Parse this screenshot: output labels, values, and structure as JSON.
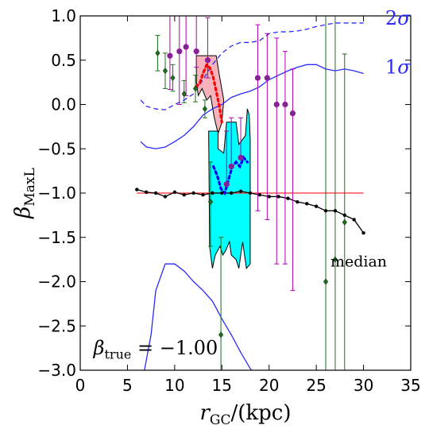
{
  "chart_data": {
    "type": "scatter",
    "xlabel": "r_GC/(kpc)",
    "ylabel": "β_MaxL",
    "xlim": [
      0,
      35
    ],
    "ylim": [
      -3.0,
      1.0
    ],
    "x_ticks": [
      0,
      5,
      10,
      15,
      20,
      25,
      30,
      35
    ],
    "x_tick_labels": [
      "0",
      "5",
      "10",
      "15",
      "20",
      "25",
      "30",
      "35"
    ],
    "y_ticks": [
      1.0,
      0.5,
      0.0,
      -0.5,
      -1.0,
      -1.5,
      -2.0,
      -2.5,
      -3.0
    ],
    "y_tick_labels": [
      "1.0",
      "0.5",
      "0.0",
      "−0.5",
      "−1.0",
      "−1.5",
      "−2.0",
      "−2.5",
      "−3.0"
    ],
    "grid": false,
    "annotations": [
      {
        "id": "label-2sigma",
        "text": "2σ",
        "x": 32.3,
        "y": 0.9,
        "color": "#2a2aff"
      },
      {
        "id": "label-1sigma",
        "text": "1σ",
        "x": 32.3,
        "y": 0.35,
        "color": "#2a2aff"
      },
      {
        "id": "label-median",
        "text": "median",
        "x": 26.5,
        "y": -1.83,
        "color": "#000000"
      },
      {
        "id": "label-beta-true",
        "text": "β_true = −1.00",
        "x": 1.4,
        "y": -2.82,
        "color": "#000000"
      }
    ],
    "reference_line": {
      "name": "beta_true",
      "x": [
        6.0,
        30.0
      ],
      "y": -1.0,
      "color": "#ff2a2a"
    },
    "sigma_bands": [
      {
        "name": "2sigma_upper",
        "color": "#2a2aff",
        "style": "dashed",
        "x": [
          6.4,
          7.0,
          8.0,
          9.0,
          10.0,
          11.0,
          12.0,
          13.0,
          14.0,
          15.0,
          16.0,
          17.0,
          18.0,
          19.0,
          20.0,
          21.0,
          22.0,
          23.0,
          24.0,
          25.0,
          26.0,
          27.0,
          28.0,
          29.0,
          30.0
        ],
        "y": [
          0.05,
          -0.02,
          -0.05,
          -0.06,
          0.0,
          0.05,
          0.12,
          0.28,
          0.45,
          0.58,
          0.66,
          0.7,
          0.7,
          0.72,
          0.8,
          0.82,
          0.82,
          0.83,
          0.85,
          0.88,
          0.9,
          0.92,
          0.92,
          0.92,
          0.92
        ]
      },
      {
        "name": "1sigma_upper",
        "color": "#2a2aff",
        "style": "solid",
        "x": [
          6.4,
          7.0,
          8.0,
          9.0,
          10.0,
          11.0,
          12.0,
          13.0,
          14.0,
          15.0,
          16.0,
          17.0,
          18.0,
          19.0,
          20.0,
          21.0,
          22.0,
          23.0,
          24.0,
          25.0,
          26.0,
          27.0,
          28.0,
          29.0,
          30.0
        ],
        "y": [
          -0.42,
          -0.48,
          -0.5,
          -0.48,
          -0.42,
          -0.35,
          -0.25,
          -0.12,
          -0.05,
          0.0,
          0.08,
          0.12,
          0.15,
          0.2,
          0.28,
          0.33,
          0.38,
          0.42,
          0.45,
          0.45,
          0.4,
          0.38,
          0.4,
          0.38,
          0.35
        ]
      },
      {
        "name": "1sigma_lower",
        "color": "#2a2aff",
        "style": "solid",
        "x": [
          6.8,
          7.5,
          8.0,
          9.0,
          10.0,
          11.0,
          12.0,
          13.0,
          14.0,
          15.0,
          16.0,
          17.0,
          18.0,
          18.5
        ],
        "y": [
          -3.0,
          -2.6,
          -2.1,
          -1.8,
          -1.8,
          -1.88,
          -2.0,
          -2.1,
          -2.22,
          -2.42,
          -2.6,
          -2.8,
          -2.98,
          -3.05
        ]
      }
    ],
    "shaded_regions": [
      {
        "name": "pink_region",
        "fill": "#f6b3bb",
        "x": [
          12.3,
          12.8,
          13.5,
          14.4,
          15.0,
          15.2,
          15.0,
          14.6,
          14.1,
          13.6,
          13.1,
          12.7,
          12.3
        ],
        "y_upper": [
          0.55,
          0.55,
          0.55,
          0.55,
          0.3,
          0.05,
          -0.2,
          -0.3,
          -0.1,
          0.05,
          0.15,
          0.25,
          0.25
        ],
        "polygon": [
          [
            12.3,
            0.25
          ],
          [
            12.3,
            0.55
          ],
          [
            14.4,
            0.55
          ],
          [
            14.7,
            0.35
          ],
          [
            15.2,
            0.05
          ],
          [
            15.0,
            -0.2
          ],
          [
            14.6,
            -0.33
          ],
          [
            14.2,
            -0.15
          ],
          [
            13.8,
            0.1
          ],
          [
            13.4,
            0.05
          ],
          [
            12.9,
            0.18
          ],
          [
            12.5,
            0.1
          ],
          [
            12.3,
            0.25
          ]
        ]
      },
      {
        "name": "cyan_region",
        "fill": "#00ffff",
        "polygon": [
          [
            13.6,
            -0.3
          ],
          [
            14.6,
            -0.3
          ],
          [
            14.6,
            -0.5
          ],
          [
            15.2,
            -0.55
          ],
          [
            15.5,
            -0.2
          ],
          [
            16.5,
            -0.2
          ],
          [
            16.8,
            -0.45
          ],
          [
            17.5,
            -0.35
          ],
          [
            17.7,
            -0.05
          ],
          [
            17.9,
            -0.12
          ],
          [
            18.0,
            -0.4
          ],
          [
            18.0,
            -1.8
          ],
          [
            17.6,
            -1.85
          ],
          [
            17.2,
            -1.55
          ],
          [
            16.8,
            -1.85
          ],
          [
            16.5,
            -1.75
          ],
          [
            16.0,
            -1.7
          ],
          [
            15.8,
            -1.55
          ],
          [
            15.4,
            -1.65
          ],
          [
            15.1,
            -1.7
          ],
          [
            14.8,
            -1.6
          ],
          [
            14.3,
            -1.7
          ],
          [
            14.0,
            -1.85
          ],
          [
            13.7,
            -1.6
          ],
          [
            13.6,
            -0.3
          ]
        ]
      }
    ],
    "median_line": {
      "name": "median",
      "color": "#000000",
      "x": [
        6.0,
        7.0,
        8.0,
        9.0,
        10.0,
        11.0,
        12.0,
        13.0,
        14.0,
        15.0,
        16.0,
        17.0,
        18.0,
        19.0,
        20.0,
        21.0,
        22.0,
        23.0,
        24.0,
        25.0,
        26.0,
        27.0,
        28.0,
        29.0,
        30.0
      ],
      "y": [
        -0.96,
        -0.99,
        -1.0,
        -1.04,
        -0.99,
        -1.02,
        -1.0,
        -1.02,
        -1.0,
        -1.0,
        -1.0,
        -0.98,
        -1.0,
        -1.02,
        -1.04,
        -1.04,
        -1.06,
        -1.1,
        -1.12,
        -1.15,
        -1.2,
        -1.2,
        -1.25,
        -1.3,
        -1.45
      ]
    },
    "red_dotted": {
      "name": "red_dotted",
      "color": "#ff0000",
      "x": [
        12.3,
        12.7,
        13.0,
        13.4,
        13.8,
        14.1,
        14.4,
        14.7,
        15.0
      ],
      "y": [
        0.2,
        0.25,
        0.35,
        0.45,
        0.4,
        0.3,
        0.15,
        0.0,
        -0.2
      ]
    },
    "blue_dotted": {
      "name": "blue_dotted",
      "color": "#0000ff",
      "x": [
        14.1,
        14.5,
        14.9,
        15.3,
        15.7,
        16.1,
        16.5,
        16.9,
        17.3,
        17.7
      ],
      "y": [
        -0.7,
        -0.8,
        -0.95,
        -1.0,
        -0.85,
        -0.7,
        -0.65,
        -0.7,
        -0.6,
        -0.65
      ]
    },
    "magenta_points": {
      "name": "magenta",
      "color": "#b000b0",
      "marker": "circle",
      "points": [
        {
          "x": 9.5,
          "y": 0.55,
          "err_low": 0.38,
          "err_high": 0.55
        },
        {
          "x": 10.5,
          "y": 0.6,
          "err_low": 0.6,
          "err_high": 0.67
        },
        {
          "x": 11.2,
          "y": 0.65,
          "err_low": 0.55,
          "err_high": 0.83
        },
        {
          "x": 12.3,
          "y": 0.6,
          "err_low": 0.18,
          "err_high": 0.65
        },
        {
          "x": 13.5,
          "y": 0.5,
          "err_low": 0.2,
          "err_high": 0.48
        },
        {
          "x": 15.5,
          "y": -0.9,
          "err_low": 0.0,
          "err_high": 0.6
        },
        {
          "x": 16.0,
          "y": -0.7,
          "err_low": 0.0,
          "err_high": 0.55
        },
        {
          "x": 17.0,
          "y": -0.6,
          "err_low": 0.0,
          "err_high": 0.45
        },
        {
          "x": 18.8,
          "y": 0.3,
          "err_low": 1.5,
          "err_high": 0.6
        },
        {
          "x": 19.8,
          "y": 0.3,
          "err_low": 1.6,
          "err_high": 0.5
        },
        {
          "x": 20.8,
          "y": 0.0,
          "err_low": 1.8,
          "err_high": 0.75
        },
        {
          "x": 21.7,
          "y": 0.0,
          "err_low": 1.8,
          "err_high": 0.6
        },
        {
          "x": 22.5,
          "y": -0.1,
          "err_low": 2.0,
          "err_high": 0.5
        }
      ]
    },
    "green_points": {
      "name": "green",
      "color": "#1e6e1e",
      "marker": "diamond",
      "points": [
        {
          "x": 8.2,
          "y": 0.58,
          "err_low": 0.2,
          "err_high": 0.2
        },
        {
          "x": 9.0,
          "y": 0.38,
          "err_low": 0.2,
          "err_high": 0.2
        },
        {
          "x": 9.8,
          "y": 0.3,
          "err_low": 0.15,
          "err_high": 0.15
        },
        {
          "x": 11.0,
          "y": 0.12,
          "err_low": 0.1,
          "err_high": 0.15
        },
        {
          "x": 12.2,
          "y": 0.18,
          "err_low": 0.15,
          "err_high": 0.15
        },
        {
          "x": 13.2,
          "y": -0.05,
          "err_low": 0.1,
          "err_high": 0.1
        },
        {
          "x": 13.8,
          "y": -1.1,
          "err_low": 0.5,
          "err_high": 0.45
        },
        {
          "x": 14.9,
          "y": -2.6,
          "err_low": 0.6,
          "err_high": 1.1
        },
        {
          "x": 26.0,
          "y": -2.0,
          "err_low": 1.0,
          "err_high": 3.0
        },
        {
          "x": 27.0,
          "y": -1.75,
          "err_low": 1.25,
          "err_high": 2.75
        },
        {
          "x": 28.0,
          "y": -1.33,
          "err_low": 1.67,
          "err_high": 1.9
        }
      ]
    }
  }
}
